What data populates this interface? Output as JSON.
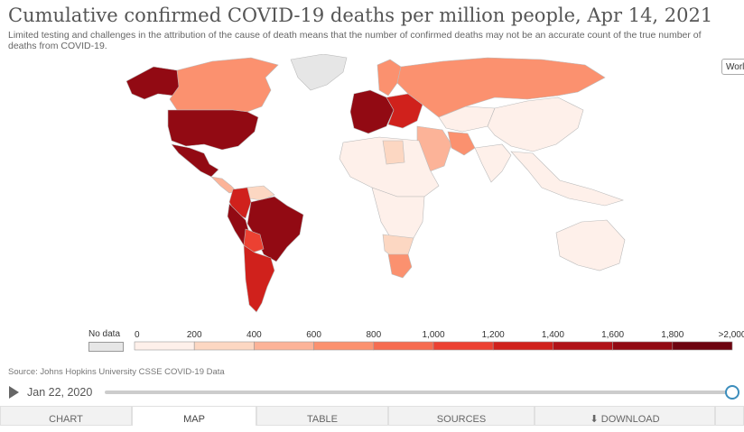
{
  "header": {
    "title": "Cumulative confirmed COVID-19 deaths per million people, Apr 14, 2021",
    "subtitle": "Limited testing and challenges in the attribution of the cause of death means that the number of confirmed deaths may not be an accurate count of the true number of deaths from COVID-19."
  },
  "region_select": {
    "value": "World"
  },
  "legend": {
    "no_data_label": "No data",
    "no_data_color": "#e6e6e6",
    "ticks": [
      "0",
      "200",
      "400",
      "600",
      "800",
      "1,000",
      "1,200",
      "1,400",
      "1,600",
      "1,800",
      ">2,000"
    ],
    "colors": [
      "#fef0ea",
      "#fcd7c2",
      "#fcb398",
      "#fb916f",
      "#f66c50",
      "#ec4132",
      "#d0211c",
      "#b11218",
      "#920a13",
      "#6e0410"
    ]
  },
  "source": "Source: Johns Hopkins University CSSE COVID-19 Data",
  "timeline": {
    "date": "Jan 22, 2020"
  },
  "tabs": [
    {
      "label": "Chart",
      "active": false
    },
    {
      "label": "Map",
      "active": true
    },
    {
      "label": "Table",
      "active": false
    },
    {
      "label": "Sources",
      "active": false
    },
    {
      "label": "Download",
      "active": false
    }
  ],
  "map_regions": [
    {
      "name": "canada",
      "color": "#fb916f"
    },
    {
      "name": "alaska",
      "color": "#920a13"
    },
    {
      "name": "greenland",
      "color": "#e6e6e6"
    },
    {
      "name": "usa",
      "color": "#920a13"
    },
    {
      "name": "mexico",
      "color": "#920a13"
    },
    {
      "name": "central-america",
      "color": "#fcb398"
    },
    {
      "name": "colombia",
      "color": "#d0211c"
    },
    {
      "name": "venezuela",
      "color": "#fcd7c2"
    },
    {
      "name": "brazil",
      "color": "#920a13"
    },
    {
      "name": "peru",
      "color": "#920a13"
    },
    {
      "name": "bolivia",
      "color": "#ec4132"
    },
    {
      "name": "argentina-chile",
      "color": "#d0211c"
    },
    {
      "name": "europe-west",
      "color": "#920a13"
    },
    {
      "name": "europe-east",
      "color": "#d0211c"
    },
    {
      "name": "scandinavia",
      "color": "#fb916f"
    },
    {
      "name": "russia",
      "color": "#fb916f"
    },
    {
      "name": "middle-east",
      "color": "#fcb398"
    },
    {
      "name": "iran",
      "color": "#fb916f"
    },
    {
      "name": "central-asia",
      "color": "#fef0ea"
    },
    {
      "name": "china-east-asia",
      "color": "#fef0ea"
    },
    {
      "name": "india",
      "color": "#fef0ea"
    },
    {
      "name": "southeast-asia",
      "color": "#fef0ea"
    },
    {
      "name": "africa-north",
      "color": "#fef0ea"
    },
    {
      "name": "libya",
      "color": "#fcd7c2"
    },
    {
      "name": "africa-central",
      "color": "#fef0ea"
    },
    {
      "name": "southern-africa",
      "color": "#fcd7c2"
    },
    {
      "name": "south-africa",
      "color": "#fb916f"
    },
    {
      "name": "australia",
      "color": "#fef0ea"
    }
  ]
}
